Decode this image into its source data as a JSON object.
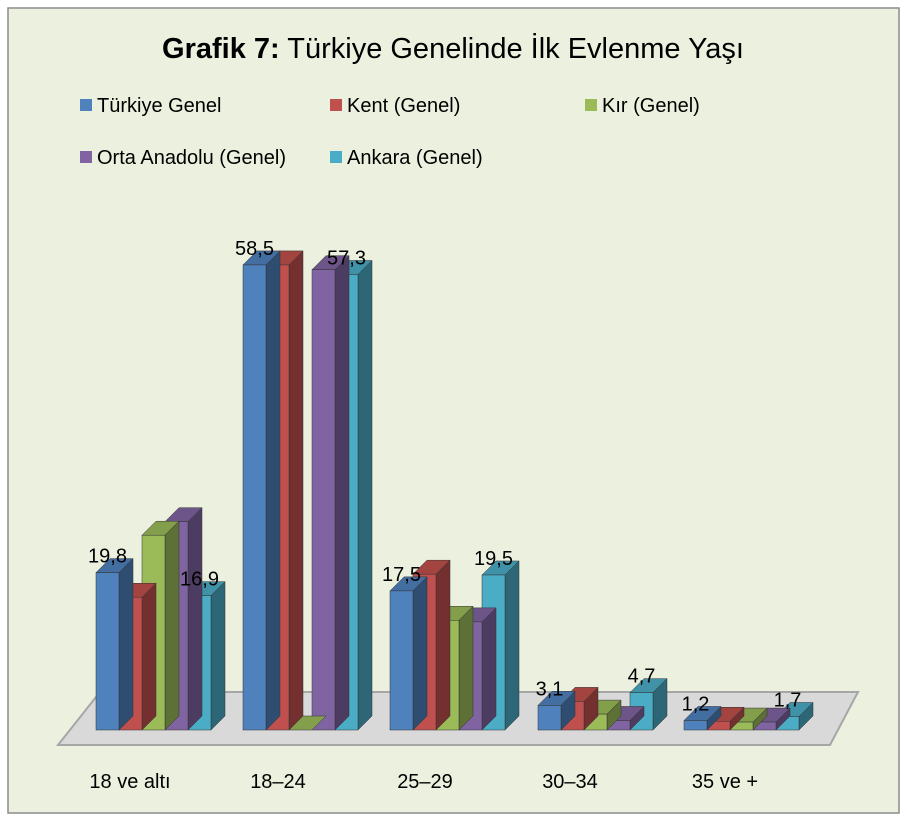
{
  "chart_data": {
    "type": "bar3d",
    "title_label": "Grafik 7:",
    "title": "Türkiye Genelinde İlk Evlenme Yaşı",
    "categories": [
      "18 ve altı",
      "18–24",
      "25–29",
      "30–34",
      "35 ve +"
    ],
    "series": [
      {
        "name": "Türkiye Genel",
        "color": "#4f81bd",
        "values": [
          19.8,
          58.5,
          17.5,
          3.1,
          1.2
        ],
        "value_labels": [
          "19,8",
          "58,5",
          "17,5",
          "3,1",
          "1,2"
        ]
      },
      {
        "name": "Kent (Genel)",
        "color": "#c0504d",
        "values": [
          16.7,
          58.5,
          19.6,
          3.6,
          1.1
        ]
      },
      {
        "name": "Kır (Genel)",
        "color": "#9bbb59",
        "values": [
          24.5,
          0,
          13.8,
          2.0,
          1.0
        ]
      },
      {
        "name": "Orta Anadolu (Genel)",
        "color": "#8064a2",
        "values": [
          26.2,
          57.9,
          13.6,
          1.2,
          1.0
        ]
      },
      {
        "name": "Ankara (Genel)",
        "color": "#4bacc6",
        "values": [
          16.9,
          57.3,
          19.5,
          4.7,
          1.7
        ],
        "value_labels": [
          "16,9",
          "57,3",
          "19,5",
          "4,7",
          "1,7"
        ]
      }
    ]
  }
}
